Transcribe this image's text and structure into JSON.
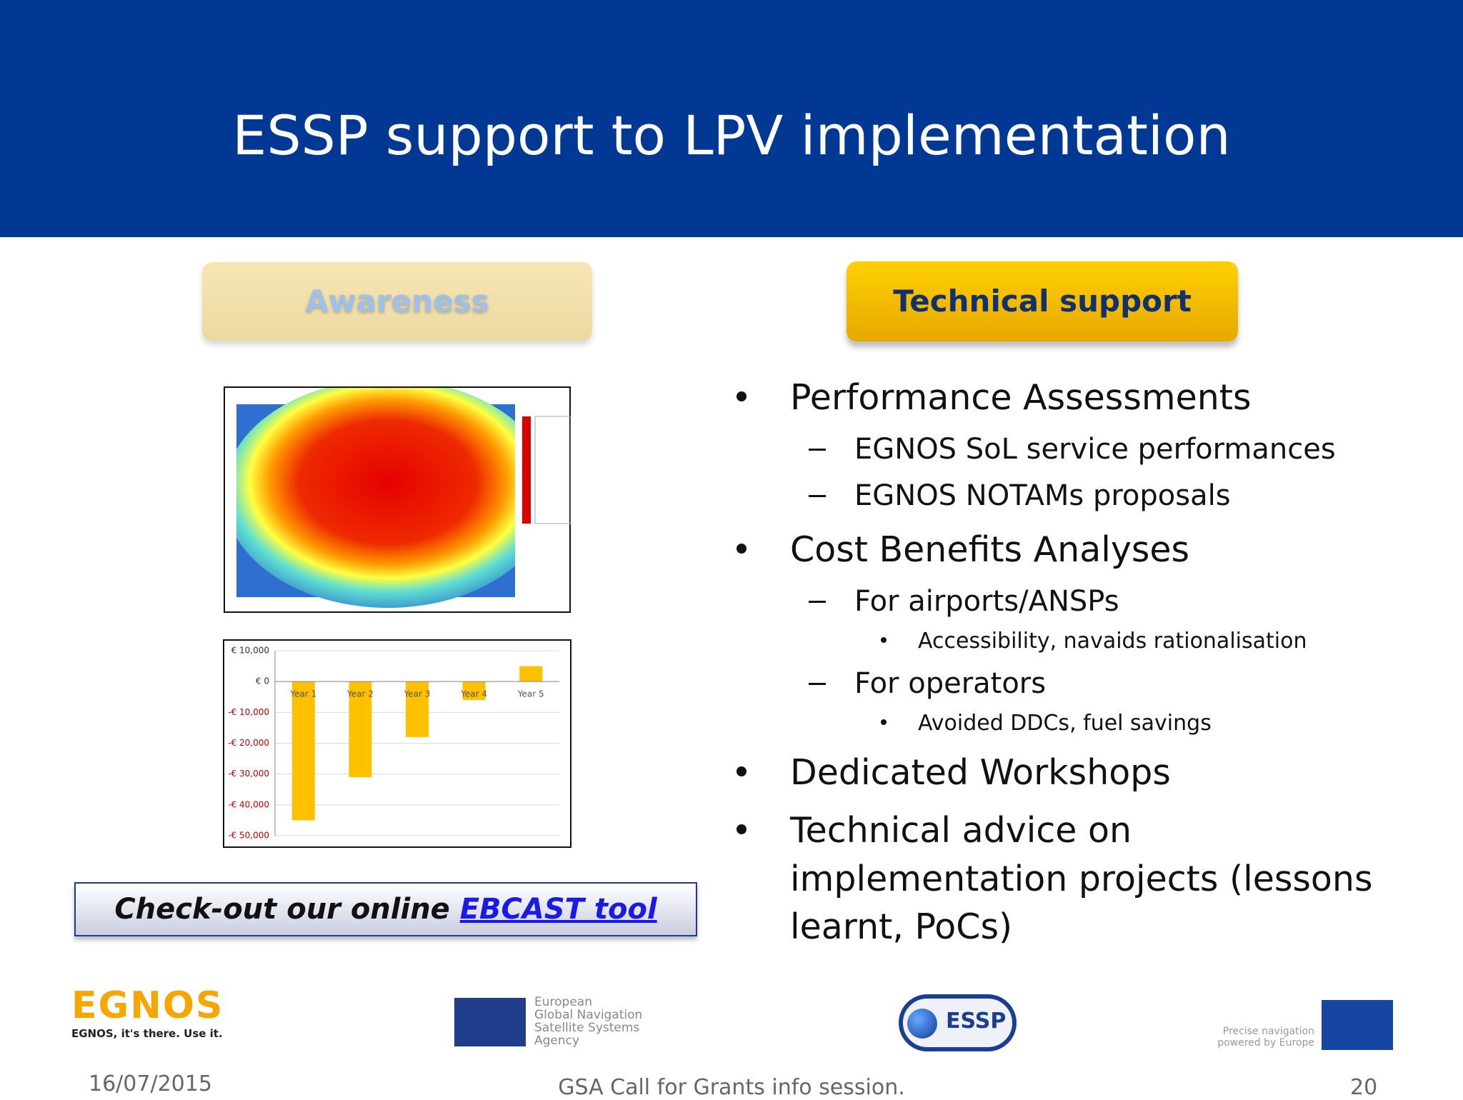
{
  "header": {
    "title": "ESSP support to LPV implementation"
  },
  "buttons": {
    "awareness": "Awareness",
    "technical_support": "Technical support"
  },
  "bullets": [
    {
      "text": "Performance Assessments",
      "level": 1
    },
    {
      "text": "EGNOS  SoL  service  performances",
      "level": 2
    },
    {
      "text": "EGNOS NOTAMs proposals",
      "level": 2
    },
    {
      "text": "Cost Benefits Analyses",
      "level": 1
    },
    {
      "text": "For airports/ANSPs",
      "level": 2
    },
    {
      "text": "Accessibility, navaids rationalisation",
      "level": 3
    },
    {
      "text": "For operators",
      "level": 2
    },
    {
      "text": "Avoided DDCs, fuel savings",
      "level": 3
    },
    {
      "text": "Dedicated Workshops",
      "level": 1
    },
    {
      "text": "Technical advice on implementation projects (lessons learnt, PoCs)",
      "level": 1
    }
  ],
  "callout": {
    "prefix": "Check-out our online ",
    "link": "EBCAST tool"
  },
  "chart_data": {
    "type": "bar",
    "categories": [
      "Year 1",
      "Year 2",
      "Year 3",
      "Year 4",
      "Year 5"
    ],
    "values": [
      -45000,
      -31000,
      -18000,
      -6000,
      5000
    ],
    "color": "#ffc000",
    "ylim": [
      -50000,
      10000
    ],
    "yticks": [
      {
        "value": 10000,
        "label": "€ 10,000"
      },
      {
        "value": 0,
        "label": "€ 0"
      },
      {
        "value": -10000,
        "label": "-€ 10,000"
      },
      {
        "value": -20000,
        "label": "-€ 20,000"
      },
      {
        "value": -30000,
        "label": "-€ 30,000"
      },
      {
        "value": -40000,
        "label": "-€ 40,000"
      },
      {
        "value": -50000,
        "label": "-€ 50,000"
      }
    ],
    "grid": true
  },
  "logos": {
    "egnos": "EGNOS",
    "egnos_tagline": "EGNOS, it's there. Use it.",
    "gsa": [
      "European",
      "Global Navigation",
      "Satellite Systems",
      "Agency"
    ],
    "essp": "ESSP",
    "eu": [
      "Precise navigation",
      "powered by Europe"
    ]
  },
  "footer": {
    "date": "16/07/2015",
    "center": "GSA Call for Grants info session.",
    "page": "20"
  }
}
